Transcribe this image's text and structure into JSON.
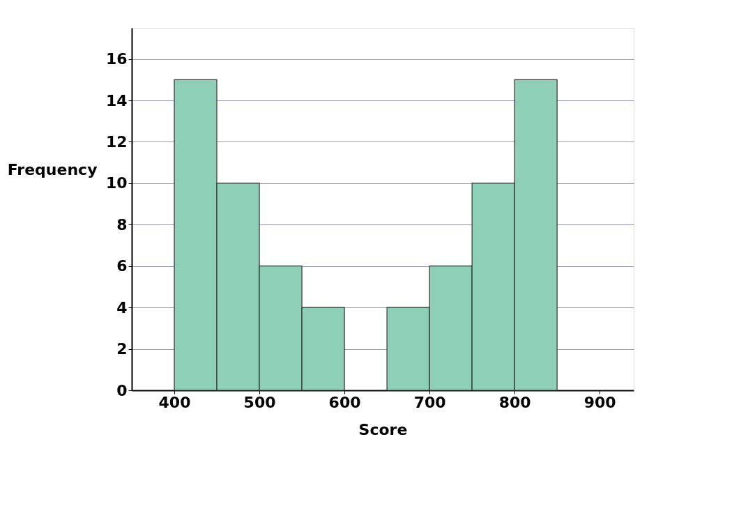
{
  "chart_data": {
    "type": "histogram",
    "xlabel": "Score",
    "ylabel": "Frequency",
    "bins": [
      400,
      450,
      500,
      550,
      600,
      650,
      700,
      750,
      800,
      850
    ],
    "values": [
      15,
      10,
      6,
      4,
      0,
      4,
      6,
      10,
      15
    ],
    "color": "#8ecfb8",
    "xlim": [
      350,
      940
    ],
    "xticks": [
      400,
      500,
      600,
      700,
      800,
      900
    ],
    "ylim": [
      0,
      17.5
    ],
    "yticks": [
      0,
      2,
      4,
      6,
      8,
      10,
      12,
      14,
      16
    ],
    "grid": "y"
  }
}
